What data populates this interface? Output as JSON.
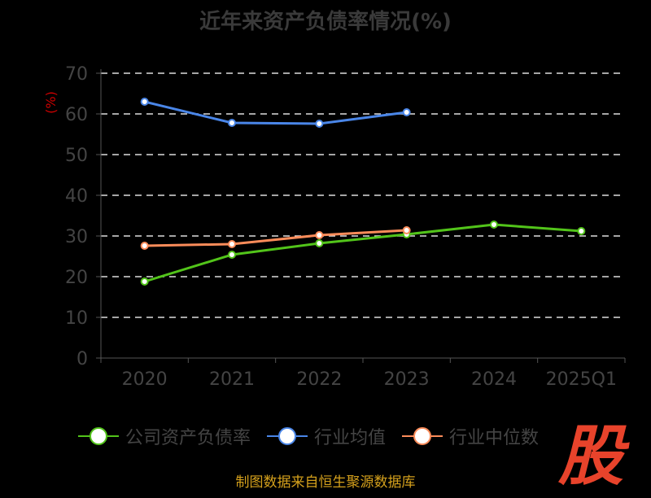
{
  "chart_data": {
    "type": "line",
    "title": "近年来资产负债率情况(%)",
    "ylabel": "(%)",
    "xlabel": "",
    "categories": [
      "2020",
      "2021",
      "2022",
      "2023",
      "2024",
      "2025Q1"
    ],
    "ylim": [
      0,
      70
    ],
    "yticks": [
      "0",
      "10",
      "20",
      "30",
      "40",
      "50",
      "60",
      "70"
    ],
    "grid": true,
    "legend_position": "bottom",
    "series": [
      {
        "name": "公司资产负债率",
        "color": "#52c41a",
        "values": [
          18.8,
          25.4,
          28.2,
          30.4,
          32.8,
          31.2
        ]
      },
      {
        "name": "行业均值",
        "color": "#4a86e8",
        "values": [
          63.0,
          57.8,
          57.6,
          60.4,
          null,
          null
        ]
      },
      {
        "name": "行业中位数",
        "color": "#fb8c5a",
        "values": [
          27.6,
          28.0,
          30.2,
          31.4,
          null,
          null
        ]
      }
    ]
  },
  "source": "制图数据来自恒生聚源数据库",
  "logo_text": "股"
}
